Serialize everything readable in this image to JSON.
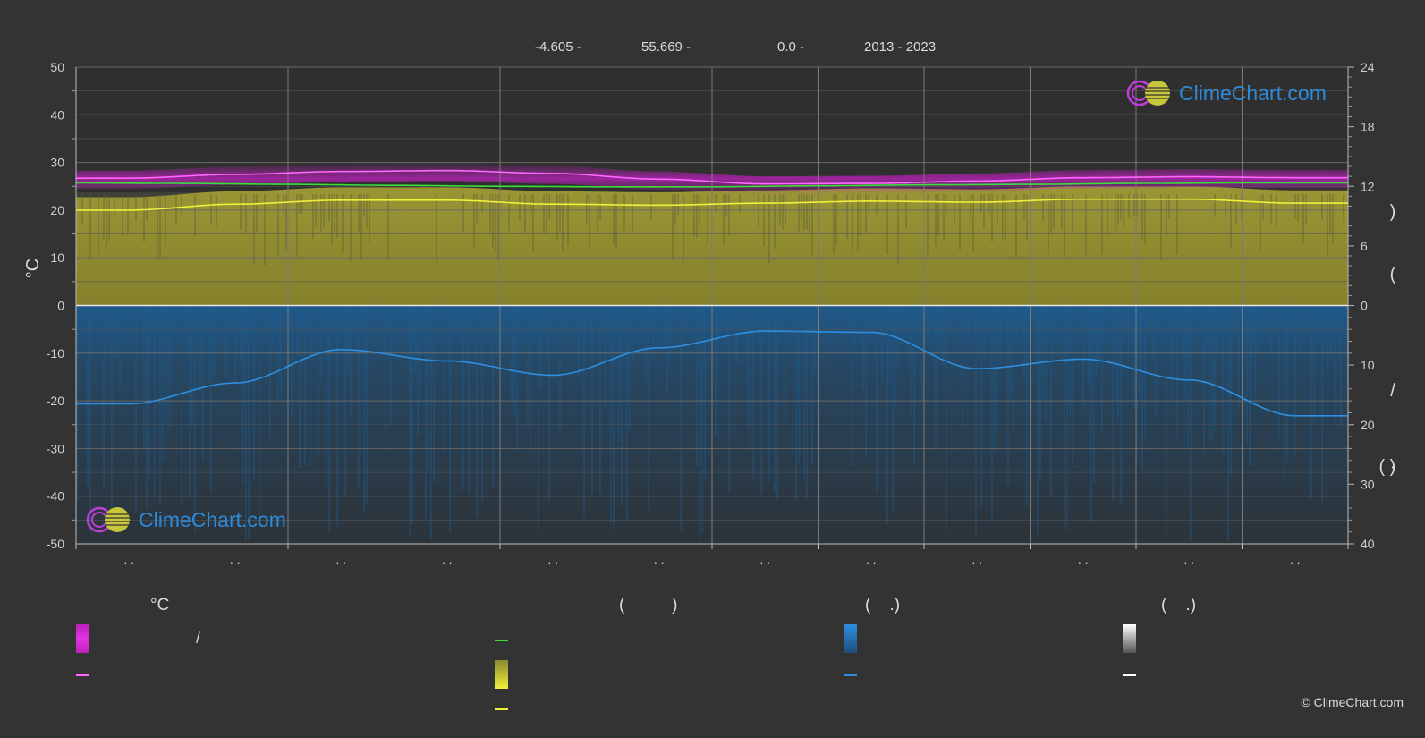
{
  "header": {
    "longitude": "-4.605 -",
    "latitude": "55.669 -",
    "elevation": "0.0 -",
    "years": "2013 - 2023"
  },
  "brand": {
    "name": "ClimeChart.com",
    "copyright": "© ClimeChart.com"
  },
  "colors": {
    "background": "#333333",
    "sea_temp_band": "#d11fd1",
    "sea_temp_line": "#ff66ff",
    "water_temp_line": "#3ddc3d",
    "sunshine_fill": "#8f8a2f",
    "sunshine_line": "#f0f03a",
    "precip_fill": "#1f5c8f",
    "precip_line": "#2e8fe0",
    "zero_line": "#e6e6e6",
    "snow_line": "#ffffff"
  },
  "legend": {
    "groups": [
      {
        "heading": "°C",
        "items": [
          {
            "icon": "magenta-gradient-swatch",
            "text": "/"
          },
          {
            "icon": "magenta-line-swatch",
            "text": ""
          }
        ]
      },
      {
        "heading": "(          )",
        "items": [
          {
            "icon": "green-line-swatch",
            "text": ""
          },
          {
            "icon": "yellow-gradient-swatch",
            "text": ""
          },
          {
            "icon": "yellow-line-swatch",
            "text": ""
          }
        ]
      },
      {
        "heading": "(    .)",
        "items": [
          {
            "icon": "blue-gradient-swatch",
            "text": ""
          },
          {
            "icon": "blue-line-swatch",
            "text": ""
          }
        ]
      },
      {
        "heading": "(    .)",
        "items": [
          {
            "icon": "white-gradient-swatch",
            "text": ""
          },
          {
            "icon": "white-line-swatch",
            "text": ""
          }
        ]
      }
    ]
  },
  "chart_data": {
    "type": "area",
    "title": "",
    "ylabel_left": "°C",
    "ylabel_right_glyphs": [
      ")",
      "(",
      "/",
      ")",
      "( ·"
    ],
    "ylim_left": [
      -50,
      50
    ],
    "yticks_left": [
      50,
      40,
      30,
      20,
      10,
      0,
      -10,
      -20,
      -30,
      -40,
      -50
    ],
    "yticks_right_top": [
      24,
      18,
      12,
      6,
      0
    ],
    "yticks_right_bottom": [
      0,
      10,
      20,
      30,
      40
    ],
    "x_month_labels": [
      ". .",
      ". .",
      ". .",
      ". .",
      ". .",
      ". .",
      ". .",
      ". .",
      ". .",
      ". .",
      ". .",
      ". ."
    ],
    "grid": true,
    "series": [
      {
        "key": "sea_temp_max",
        "x": [
          0,
          0.5,
          1.5,
          2.5,
          3.5,
          4.5,
          5.5,
          6.5,
          7.5,
          8.5,
          9.5,
          10.5,
          11.5,
          12
        ],
        "values": [
          26.7,
          26.7,
          27.5,
          28.1,
          28.3,
          27.7,
          26.5,
          25.5,
          25.6,
          26.1,
          26.8,
          27.0,
          26.8,
          26.8
        ]
      },
      {
        "key": "water_temp",
        "x": [
          0,
          12
        ],
        "values": [
          25.7,
          25.7
        ]
      },
      {
        "key": "water_temp_profile",
        "x": [
          0,
          1,
          2,
          3,
          4,
          5,
          6,
          7,
          8,
          9,
          10,
          11,
          12
        ],
        "values": [
          25.7,
          25.6,
          25.4,
          25.2,
          25.0,
          24.9,
          24.9,
          25.1,
          25.3,
          25.4,
          25.6,
          25.7,
          25.7
        ]
      },
      {
        "key": "sunshine_hours",
        "x": [
          0,
          0.5,
          1.5,
          2.5,
          3.5,
          4.5,
          5.5,
          6.5,
          7.5,
          8.5,
          9.5,
          10.5,
          11.5,
          12
        ],
        "values": [
          9.6,
          9.6,
          10.2,
          10.6,
          10.6,
          10.2,
          10.1,
          10.3,
          10.5,
          10.4,
          10.7,
          10.7,
          10.3,
          10.3
        ]
      },
      {
        "key": "daylight_hours",
        "x": [
          0,
          12
        ],
        "values": [
          11.4,
          11.4
        ]
      },
      {
        "key": "precipitation_mm_day",
        "x": [
          0,
          0.5,
          1.5,
          2.5,
          3.5,
          4.5,
          5.5,
          6.5,
          7.5,
          8.5,
          9.5,
          10.5,
          11.5,
          12
        ],
        "values": [
          16.5,
          16.5,
          13.0,
          7.4,
          9.3,
          11.7,
          7.1,
          4.3,
          4.5,
          10.6,
          9.0,
          12.5,
          18.5,
          18.5
        ]
      }
    ]
  }
}
